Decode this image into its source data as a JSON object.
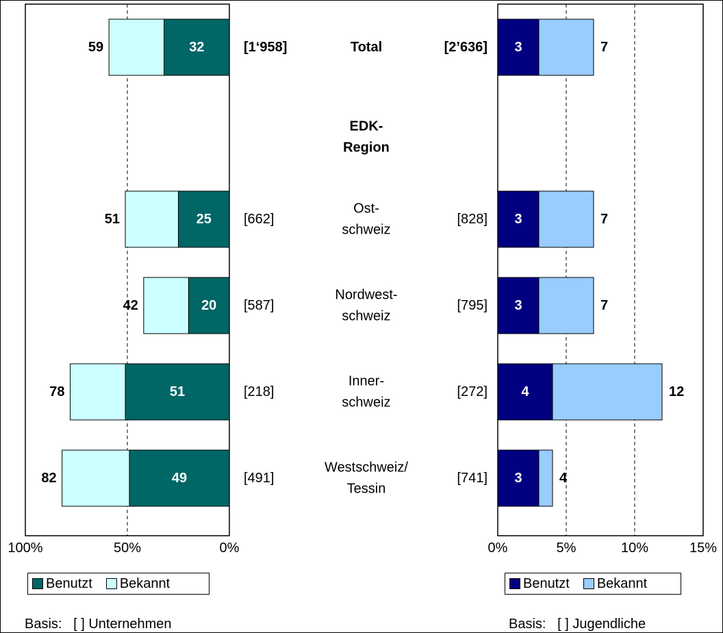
{
  "chart_data": [
    {
      "type": "bar",
      "orientation": "horizontal",
      "stacked": false,
      "direction": "reversed",
      "xlim": [
        0,
        100
      ],
      "ticks": [
        "100%",
        "50%",
        "0%"
      ],
      "tick_values": [
        100,
        50,
        0
      ],
      "grid": "dashed at 50%",
      "categories": [
        "Total",
        "Ost-schweiz",
        "Nordwest-schweiz",
        "Inner-schweiz",
        "Westschweiz/Tessin"
      ],
      "bases": [
        "[1‘958]",
        "[662]",
        "[587]",
        "[218]",
        "[491]"
      ],
      "series": [
        {
          "name": "Benutzt",
          "values": [
            32,
            25,
            20,
            51,
            49
          ],
          "color": "#006666"
        },
        {
          "name": "Bekannt",
          "values": [
            59,
            51,
            42,
            78,
            82
          ],
          "color": "#ccffff"
        }
      ],
      "legend": "bottom-left",
      "basis": {
        "label": "Basis:",
        "text": "[ ] Unternehmen"
      }
    },
    {
      "type": "bar",
      "orientation": "horizontal",
      "stacked": false,
      "xlim": [
        0,
        15
      ],
      "ticks": [
        "0%",
        "5%",
        "10%",
        "15%"
      ],
      "tick_values": [
        0,
        5,
        10,
        15
      ],
      "grid": "dashed at 5% and 10%",
      "categories": [
        "Total",
        "Ost-schweiz",
        "Nordwest-schweiz",
        "Inner-schweiz",
        "Westschweiz/Tessin"
      ],
      "bases": [
        "[2’636]",
        "[828]",
        "[795]",
        "[272]",
        "[741]"
      ],
      "series": [
        {
          "name": "Benutzt",
          "values": [
            3,
            3,
            3,
            4,
            3
          ],
          "color": "#000080"
        },
        {
          "name": "Bekannt",
          "values": [
            7,
            7,
            7,
            12,
            4
          ],
          "color": "#99ccff"
        }
      ],
      "legend": "bottom-right",
      "basis": {
        "label": "Basis:",
        "text": "[ ] Jugendliche"
      }
    }
  ],
  "center_labels": [
    {
      "lines": [
        "Total"
      ],
      "bold": true
    },
    {
      "lines": [
        "EDK-",
        "Region"
      ],
      "bold": true
    },
    {
      "lines": [
        "Ost-",
        "schweiz"
      ],
      "bold": false
    },
    {
      "lines": [
        "Nordwest-",
        "schweiz"
      ],
      "bold": false
    },
    {
      "lines": [
        "Inner-",
        "schweiz"
      ],
      "bold": false
    },
    {
      "lines": [
        "Westschweiz/",
        "Tessin"
      ],
      "bold": false
    }
  ],
  "legend_labels": {
    "benutzt": "Benutzt",
    "bekannt": "Bekannt"
  }
}
